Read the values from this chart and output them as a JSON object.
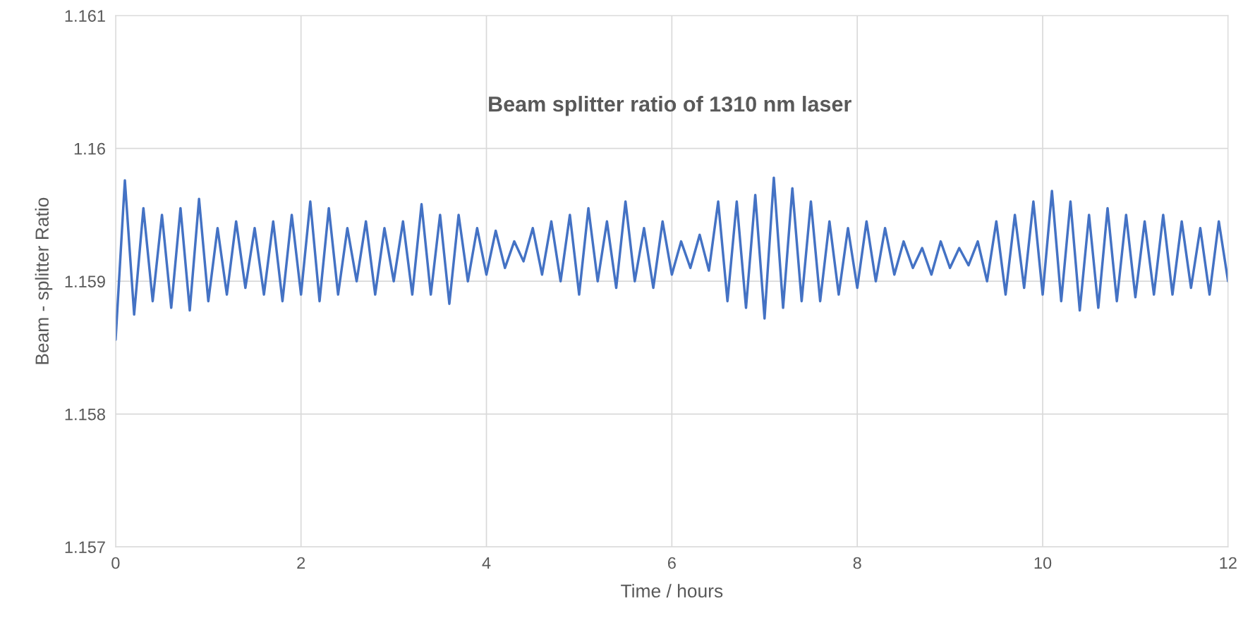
{
  "chart_data": {
    "type": "line",
    "title": "Beam splitter ratio of 1310 nm laser",
    "xlabel": "Time / hours",
    "ylabel": "Beam - splitter Ratio",
    "x": [
      0,
      0.1,
      0.2,
      0.3,
      0.4,
      0.5,
      0.6,
      0.7,
      0.8,
      0.9,
      1.0,
      1.1,
      1.2,
      1.3,
      1.4,
      1.5,
      1.6,
      1.7,
      1.8,
      1.9,
      2.0,
      2.1,
      2.2,
      2.3,
      2.4,
      2.5,
      2.6,
      2.7,
      2.8,
      2.9,
      3.0,
      3.1,
      3.2,
      3.3,
      3.4,
      3.5,
      3.6,
      3.7,
      3.8,
      3.9,
      4.0,
      4.1,
      4.2,
      4.3,
      4.4,
      4.5,
      4.6,
      4.7,
      4.8,
      4.9,
      5.0,
      5.1,
      5.2,
      5.3,
      5.4,
      5.5,
      5.6,
      5.7,
      5.8,
      5.9,
      6.0,
      6.1,
      6.2,
      6.3,
      6.4,
      6.5,
      6.6,
      6.7,
      6.8,
      6.9,
      7.0,
      7.1,
      7.2,
      7.3,
      7.4,
      7.5,
      7.6,
      7.7,
      7.8,
      7.9,
      8.0,
      8.1,
      8.2,
      8.3,
      8.4,
      8.5,
      8.6,
      8.7,
      8.8,
      8.9,
      9.0,
      9.1,
      9.2,
      9.3,
      9.4,
      9.5,
      9.6,
      9.7,
      9.8,
      9.9,
      10.0,
      10.1,
      10.2,
      10.3,
      10.4,
      10.5,
      10.6,
      10.7,
      10.8,
      10.9,
      11.0,
      11.1,
      11.2,
      11.3,
      11.4,
      11.5,
      11.6,
      11.7,
      11.8,
      11.9,
      12.0
    ],
    "series": [
      {
        "color": "#4472c4",
        "values": [
          1.15856,
          1.15976,
          1.15875,
          1.15955,
          1.15885,
          1.1595,
          1.1588,
          1.15955,
          1.15878,
          1.15962,
          1.15885,
          1.1594,
          1.1589,
          1.15945,
          1.15895,
          1.1594,
          1.1589,
          1.15945,
          1.15885,
          1.1595,
          1.1589,
          1.1596,
          1.15885,
          1.15955,
          1.1589,
          1.1594,
          1.159,
          1.15945,
          1.1589,
          1.1594,
          1.159,
          1.15945,
          1.1589,
          1.15958,
          1.1589,
          1.1595,
          1.15883,
          1.1595,
          1.159,
          1.1594,
          1.15905,
          1.15938,
          1.1591,
          1.1593,
          1.15915,
          1.1594,
          1.15905,
          1.15945,
          1.159,
          1.1595,
          1.1589,
          1.15955,
          1.159,
          1.15945,
          1.15895,
          1.1596,
          1.159,
          1.1594,
          1.15895,
          1.15945,
          1.15905,
          1.1593,
          1.1591,
          1.15935,
          1.15908,
          1.1596,
          1.15885,
          1.1596,
          1.1588,
          1.15965,
          1.15872,
          1.15978,
          1.1588,
          1.1597,
          1.15885,
          1.1596,
          1.15885,
          1.15945,
          1.1589,
          1.1594,
          1.15895,
          1.15945,
          1.159,
          1.1594,
          1.15905,
          1.1593,
          1.1591,
          1.15925,
          1.15905,
          1.1593,
          1.1591,
          1.15925,
          1.15912,
          1.1593,
          1.159,
          1.15945,
          1.1589,
          1.1595,
          1.15895,
          1.1596,
          1.1589,
          1.15968,
          1.15885,
          1.1596,
          1.15878,
          1.1595,
          1.1588,
          1.15955,
          1.15885,
          1.1595,
          1.15888,
          1.15945,
          1.1589,
          1.1595,
          1.1589,
          1.15945,
          1.15895,
          1.1594,
          1.1589,
          1.15945,
          1.159
        ]
      }
    ],
    "xlim": [
      0,
      12
    ],
    "ylim": [
      1.157,
      1.161
    ],
    "xticks": [
      0,
      2,
      4,
      6,
      8,
      10,
      12
    ],
    "yticks": [
      1.157,
      1.158,
      1.159,
      1.16,
      1.161
    ],
    "grid": true
  }
}
